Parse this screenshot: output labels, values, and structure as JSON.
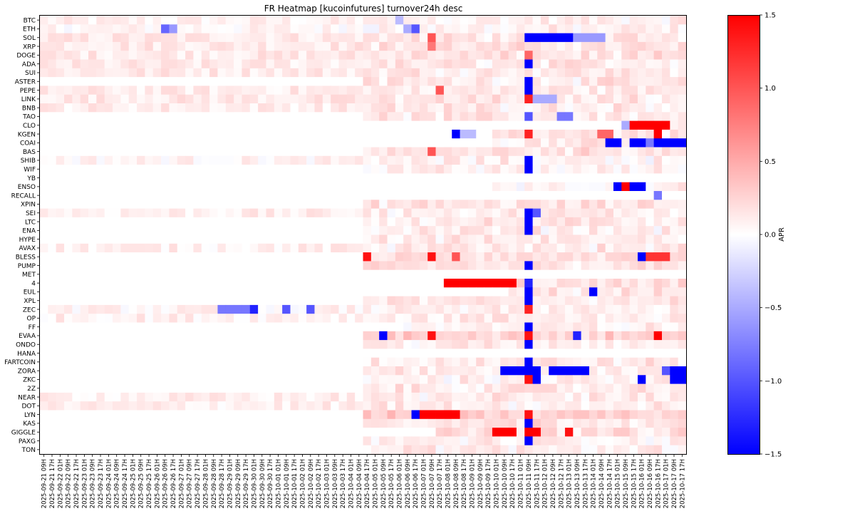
{
  "chart_data": {
    "type": "heatmap",
    "title": "FR Heatmap [kucoinfutures] turnover24h desc",
    "rows": [
      "BTC",
      "ETH",
      "SOL",
      "XRP",
      "DOGE",
      "ADA",
      "SUI",
      "ASTER",
      "PEPE",
      "LINK",
      "BNB",
      "TAO",
      "CLO",
      "KGEN",
      "COAI",
      "BAS",
      "SHIB",
      "WIF",
      "YB",
      "ENSO",
      "RECALL",
      "XPIN",
      "SEI",
      "LTC",
      "ENA",
      "HYPE",
      "AVAX",
      "BLESS",
      "PUMP",
      "MET",
      "4",
      "EUL",
      "XPL",
      "ZEC",
      "OP",
      "FF",
      "EVAA",
      "ONDO",
      "HANA",
      "FARTCOIN",
      "ZORA",
      "ZKC",
      "2Z",
      "NEAR",
      "DOT",
      "LYN",
      "KAS",
      "GIGGLE",
      "PAXG",
      "TON"
    ],
    "columns": [
      "2025-09-21 09H",
      "2025-09-21 17H",
      "2025-09-22 01H",
      "2025-09-22 09H",
      "2025-09-22 17H",
      "2025-09-23 01H",
      "2025-09-23 09H",
      "2025-09-23 17H",
      "2025-09-24 01H",
      "2025-09-24 09H",
      "2025-09-24 17H",
      "2025-09-25 01H",
      "2025-09-25 09H",
      "2025-09-25 17H",
      "2025-09-26 01H",
      "2025-09-26 09H",
      "2025-09-26 17H",
      "2025-09-27 01H",
      "2025-09-27 09H",
      "2025-09-27 17H",
      "2025-09-28 01H",
      "2025-09-28 09H",
      "2025-09-28 17H",
      "2025-09-29 01H",
      "2025-09-29 09H",
      "2025-09-29 17H",
      "2025-09-30 01H",
      "2025-09-30 09H",
      "2025-09-30 17H",
      "2025-10-01 01H",
      "2025-10-01 09H",
      "2025-10-01 17H",
      "2025-10-02 01H",
      "2025-10-02 09H",
      "2025-10-02 17H",
      "2025-10-03 01H",
      "2025-10-03 09H",
      "2025-10-03 17H",
      "2025-10-04 01H",
      "2025-10-04 09H",
      "2025-10-04 17H",
      "2025-10-05 01H",
      "2025-10-05 09H",
      "2025-10-05 17H",
      "2025-10-06 01H",
      "2025-10-06 09H",
      "2025-10-06 17H",
      "2025-10-07 01H",
      "2025-10-07 09H",
      "2025-10-07 17H",
      "2025-10-08 01H",
      "2025-10-08 09H",
      "2025-10-08 17H",
      "2025-10-09 01H",
      "2025-10-09 09H",
      "2025-10-09 17H",
      "2025-10-10 01H",
      "2025-10-10 09H",
      "2025-10-10 17H",
      "2025-10-11 01H",
      "2025-10-11 09H",
      "2025-10-11 17H",
      "2025-10-12 01H",
      "2025-10-12 09H",
      "2025-10-12 17H",
      "2025-10-13 01H",
      "2025-10-13 09H",
      "2025-10-13 17H",
      "2025-10-14 01H",
      "2025-10-14 09H",
      "2025-10-14 17H",
      "2025-10-15 01H",
      "2025-10-15 09H",
      "2025-10-15 17H",
      "2025-10-16 01H",
      "2025-10-16 09H",
      "2025-10-16 17H",
      "2025-10-17 01H",
      "2025-10-17 09H",
      "2025-10-17 17H"
    ],
    "colorbar": {
      "label": "APR",
      "vmin": -1.5,
      "vmax": 1.5,
      "ticks": [
        1.5,
        1.0,
        0.5,
        0.0,
        -0.5,
        -1.0,
        -1.5
      ],
      "tick_labels": [
        "1.5",
        "1.0",
        "0.5",
        "0.0",
        "−0.5",
        "−1.0",
        "−1.5"
      ],
      "cmap": "bwr",
      "low_color": "#0000ff",
      "mid_color": "#ffffff",
      "high_color": "#ff0000"
    },
    "row_defaults": {
      "BTC": 0.06,
      "ETH": 0.04,
      "SOL": 0.12,
      "XRP": 0.13,
      "DOGE": 0.12,
      "ADA": 0.1,
      "SUI": 0.12,
      "ASTER": 0.1,
      "PEPE": 0.1,
      "LINK": 0.12,
      "BNB": 0.1,
      "TAO": 0.1,
      "CLO": 0.05,
      "KGEN": 0.1,
      "COAI": 0.08,
      "BAS": 0.15,
      "SHIB": 0.05,
      "WIF": 0.04,
      "YB": 0.0,
      "ENSO": 0.04,
      "RECALL": 0.0,
      "XPIN": 0.12,
      "SEI": 0.08,
      "LTC": 0.1,
      "ENA": 0.08,
      "HYPE": 0.08,
      "AVAX": 0.08,
      "BLESS": 0.15,
      "PUMP": 0.12,
      "MET": 0.0,
      "4": 0.12,
      "EUL": 0.1,
      "XPL": 0.1,
      "ZEC": 0.05,
      "OP": 0.08,
      "FF": 0.05,
      "EVAA": 0.25,
      "ONDO": 0.08,
      "HANA": 0.0,
      "FARTCOIN": 0.1,
      "ZORA": 0.1,
      "ZKC": 0.05,
      "2Z": 0.1,
      "NEAR": 0.08,
      "DOT": 0.08,
      "LYN": 0.25,
      "KAS": 0.15,
      "GIGGLE": 0.15,
      "PAXG": 0.06,
      "TON": 0.08
    },
    "row_listing_start": {
      "CLO": 72,
      "KGEN": 56,
      "COAI": 56,
      "YB": 56,
      "ENSO": 56,
      "RECALL": 75,
      "MET": 56,
      "4": 50,
      "EUL": 58,
      "FF": 45,
      "HANA": 56,
      "GIGGLE": 49,
      "TAO": 40,
      "ASTER": 40,
      "BAS": 40,
      "WIF": 40,
      "XPIN": 40,
      "LTC": 40,
      "ENA": 40,
      "HYPE": 40,
      "BLESS": 40,
      "PUMP": 40,
      "XPL": 40,
      "EVAA": 40,
      "ONDO": 40,
      "FARTCOIN": 40,
      "ZORA": 40,
      "ZKC": 40,
      "2Z": 40,
      "LYN": 40,
      "KAS": 40,
      "PAXG": 40,
      "TON": 40
    },
    "highlights": [
      {
        "row": "SOL",
        "col": 60,
        "to": 65,
        "value": -1.5
      },
      {
        "row": "SOL",
        "col": 66,
        "to": 69,
        "value": -0.6
      },
      {
        "row": "ETH",
        "col": 46,
        "value": -1.0
      },
      {
        "row": "ETH",
        "col": 45,
        "value": -0.5
      },
      {
        "row": "BTC",
        "col": 44,
        "value": -0.4
      },
      {
        "row": "ETH",
        "col": 15,
        "value": -0.9
      },
      {
        "row": "ETH",
        "col": 16,
        "value": -0.6
      },
      {
        "row": "SOL",
        "col": 48,
        "value": 1.0
      },
      {
        "row": "XRP",
        "col": 48,
        "value": 0.8
      },
      {
        "row": "DOGE",
        "col": 60,
        "value": 0.9
      },
      {
        "row": "ADA",
        "col": 60,
        "value": -1.5
      },
      {
        "row": "ASTER",
        "col": 60,
        "value": -1.5
      },
      {
        "row": "PEPE",
        "col": 60,
        "value": -1.5
      },
      {
        "row": "PEPE",
        "col": 49,
        "value": 1.0
      },
      {
        "row": "LINK",
        "col": 60,
        "value": 1.3
      },
      {
        "row": "LINK",
        "col": 61,
        "to": 63,
        "value": -0.5
      },
      {
        "row": "TAO",
        "col": 60,
        "value": -1.0
      },
      {
        "row": "TAO",
        "col": 64,
        "to": 65,
        "value": -0.8
      },
      {
        "row": "CLO",
        "col": 72,
        "value": -0.5
      },
      {
        "row": "CLO",
        "col": 73,
        "to": 77,
        "value": 1.5
      },
      {
        "row": "KGEN",
        "col": 51,
        "value": -1.5
      },
      {
        "row": "KGEN",
        "col": 52,
        "to": 53,
        "value": -0.4
      },
      {
        "row": "KGEN",
        "col": 60,
        "value": 1.3
      },
      {
        "row": "KGEN",
        "col": 69,
        "to": 70,
        "value": 0.9
      },
      {
        "row": "KGEN",
        "col": 76,
        "value": 1.5
      },
      {
        "row": "COAI",
        "col": 70,
        "to": 71,
        "value": -1.5
      },
      {
        "row": "COAI",
        "col": 73,
        "to": 74,
        "value": -1.5
      },
      {
        "row": "COAI",
        "col": 75,
        "value": -0.8
      },
      {
        "row": "COAI",
        "col": 76,
        "to": 79,
        "value": -1.5
      },
      {
        "row": "BAS",
        "col": 48,
        "value": 1.0
      },
      {
        "row": "SHIB",
        "col": 60,
        "value": -1.5
      },
      {
        "row": "WIF",
        "col": 60,
        "value": -1.5
      },
      {
        "row": "ENSO",
        "col": 71,
        "value": -1.5
      },
      {
        "row": "ENSO",
        "col": 72,
        "value": 1.5
      },
      {
        "row": "ENSO",
        "col": 73,
        "to": 74,
        "value": -1.5
      },
      {
        "row": "RECALL",
        "col": 76,
        "value": -0.8
      },
      {
        "row": "SEI",
        "col": 60,
        "value": -1.5
      },
      {
        "row": "SEI",
        "col": 61,
        "value": -1.0
      },
      {
        "row": "LTC",
        "col": 60,
        "value": -1.5
      },
      {
        "row": "ENA",
        "col": 60,
        "value": -1.5
      },
      {
        "row": "BLESS",
        "col": 40,
        "value": 1.4
      },
      {
        "row": "BLESS",
        "col": 48,
        "value": 1.4
      },
      {
        "row": "BLESS",
        "col": 51,
        "value": 1.0
      },
      {
        "row": "BLESS",
        "col": 74,
        "value": -1.5
      },
      {
        "row": "BLESS",
        "col": 75,
        "to": 77,
        "value": 1.2
      },
      {
        "row": "PUMP",
        "col": 60,
        "value": -1.5
      },
      {
        "row": "4",
        "col": 50,
        "to": 58,
        "value": 1.5
      },
      {
        "row": "4",
        "col": 60,
        "value": -1.3
      },
      {
        "row": "EUL",
        "col": 60,
        "value": -1.5
      },
      {
        "row": "EUL",
        "col": 68,
        "value": -1.5
      },
      {
        "row": "XPL",
        "col": 60,
        "value": -1.5
      },
      {
        "row": "ZEC",
        "col": 22,
        "to": 25,
        "value": -0.8
      },
      {
        "row": "ZEC",
        "col": 26,
        "value": -1.3
      },
      {
        "row": "ZEC",
        "col": 30,
        "value": -1.0
      },
      {
        "row": "ZEC",
        "col": 33,
        "value": -1.0
      },
      {
        "row": "ZEC",
        "col": 60,
        "value": 1.3
      },
      {
        "row": "FF",
        "col": 60,
        "value": -1.5
      },
      {
        "row": "EVAA",
        "col": 42,
        "value": -1.5
      },
      {
        "row": "EVAA",
        "col": 48,
        "value": 1.4
      },
      {
        "row": "EVAA",
        "col": 60,
        "value": 1.4
      },
      {
        "row": "EVAA",
        "col": 66,
        "value": -1.3
      },
      {
        "row": "EVAA",
        "col": 76,
        "value": 1.5
      },
      {
        "row": "ONDO",
        "col": 60,
        "value": -1.5
      },
      {
        "row": "FARTCOIN",
        "col": 60,
        "value": -1.5
      },
      {
        "row": "ZORA",
        "col": 57,
        "to": 61,
        "value": -1.5
      },
      {
        "row": "ZORA",
        "col": 63,
        "to": 67,
        "value": -1.5
      },
      {
        "row": "ZORA",
        "col": 77,
        "value": -1.0
      },
      {
        "row": "ZORA",
        "col": 78,
        "to": 79,
        "value": -1.5
      },
      {
        "row": "ZKC",
        "col": 60,
        "value": 1.4
      },
      {
        "row": "ZKC",
        "col": 61,
        "value": -1.5
      },
      {
        "row": "ZKC",
        "col": 74,
        "value": -1.5
      },
      {
        "row": "ZKC",
        "col": 78,
        "to": 79,
        "value": -1.5
      },
      {
        "row": "LYN",
        "col": 46,
        "value": -1.5
      },
      {
        "row": "LYN",
        "col": 47,
        "to": 51,
        "value": 1.5
      },
      {
        "row": "LYN",
        "col": 60,
        "value": 1.4
      },
      {
        "row": "KAS",
        "col": 60,
        "value": -1.5
      },
      {
        "row": "GIGGLE",
        "col": 56,
        "to": 58,
        "value": 1.5
      },
      {
        "row": "GIGGLE",
        "col": 60,
        "to": 61,
        "value": 1.5
      },
      {
        "row": "GIGGLE",
        "col": 65,
        "value": 1.4
      },
      {
        "row": "PAXG",
        "col": 60,
        "value": -1.5
      }
    ]
  }
}
